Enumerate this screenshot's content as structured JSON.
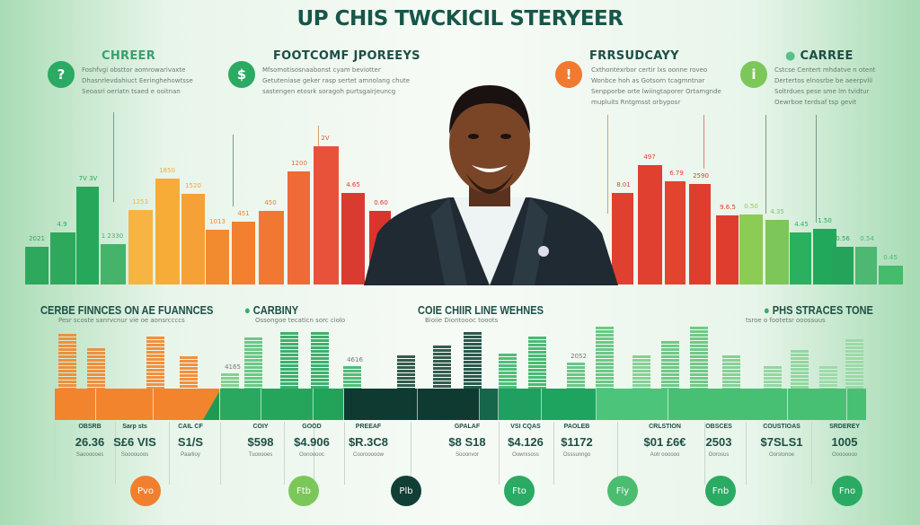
{
  "title": "UP CHIS TWCKICIL STERYEER",
  "sections": [
    {
      "heading": "CHREER",
      "icon": "question-icon",
      "glyph": "?",
      "color": "#2aaa62",
      "text": [
        "Foshfvgi obsttor aomrowarivaxte",
        "Dhasnrlevdahiuct Eeringhehowtsse",
        "Seoasri oeriatn tsaed e ooitnan"
      ]
    },
    {
      "heading": "FOOTCOMF JPOREEYS",
      "icon": "dollar-icon",
      "glyph": "$",
      "color": "#2aaa62",
      "text": [
        "Mfsomotisosnaabonst cyam beviotter",
        "Getuteniase geker rasp sertet amnolang chute",
        "sastengen etosrk soragoh purtsgairjeuncg"
      ]
    },
    {
      "heading": "FRRSUDCAYY",
      "icon": "lightbulb-icon",
      "glyph": "!",
      "color": "#f07a30",
      "text": [
        "Cxthontexrbor certir lxs oonne roveo",
        "Wonbce hoh as Gotsorn tcagmntnar",
        "Senpporbe orte lwiingtaporer Ortamgnde",
        "mupluits Rntgmsst orbyposr"
      ]
    },
    {
      "heading": "CARREE",
      "icon": "info-icon",
      "glyph": "i",
      "color": "#7cc75a",
      "text": [
        "Cstcse Centert mhdatve n otent",
        "Dertertos elnosrbe be aeerpvlil",
        "Soltrdues pese sme lm tvidtur",
        "Oewrboe terdsaf tsp gevit"
      ]
    }
  ],
  "top_bars_left": [
    {
      "label": "2021",
      "level": 26,
      "color": "#2ea85c"
    },
    {
      "label": "4.9",
      "level": 36,
      "color": "#2ea85c"
    },
    {
      "label": "7V 3V",
      "level": 68,
      "color": "#26a85a"
    },
    {
      "label": "1 2330",
      "level": 28,
      "color": "#45b36a"
    },
    {
      "label": "1253",
      "level": 52,
      "color": "#f6b443"
    },
    {
      "label": "1850",
      "level": 74,
      "color": "#f7ac38"
    },
    {
      "label": "1520",
      "level": 63,
      "color": "#f6a038"
    },
    {
      "label": "1013",
      "level": 38,
      "color": "#f28a30"
    },
    {
      "label": "451",
      "level": 44,
      "color": "#f2802f"
    },
    {
      "label": "450",
      "level": 51,
      "color": "#f07833"
    },
    {
      "label": "1200",
      "level": 79,
      "color": "#ee6a36"
    },
    {
      "label": "2V",
      "level": 96,
      "color": "#e8523a"
    },
    {
      "label": "4.65",
      "level": 64,
      "color": "#d93b30"
    },
    {
      "label": "0.60",
      "level": 51,
      "color": "#d9352d"
    }
  ],
  "top_bars_right": [
    {
      "label": "8.01",
      "level": 64,
      "color": "#e0402f"
    },
    {
      "label": "497",
      "level": 83,
      "color": "#e0402f"
    },
    {
      "label": "6.79",
      "level": 72,
      "color": "#e24430"
    },
    {
      "label": "2590",
      "level": 70,
      "color": "#df3e2e"
    },
    {
      "label": "9.6.5",
      "level": 48,
      "color": "#df3e2e"
    },
    {
      "label": "0.50",
      "level": 49,
      "color": "#8ccc55"
    },
    {
      "label": "4.35",
      "level": 45,
      "color": "#7cc65a"
    },
    {
      "label": "4.45",
      "level": 36,
      "color": "#2bb060"
    },
    {
      "label": "1.50",
      "level": 39,
      "color": "#22a85a"
    },
    {
      "label": "0.56",
      "level": 26,
      "color": "#25a35a"
    },
    {
      "label": "0.54",
      "level": 26,
      "color": "#4cb872"
    },
    {
      "label": "0.45",
      "level": 13,
      "color": "#45bb6c"
    }
  ],
  "bottom_headings": [
    {
      "title": "CERBE FINNCES ON AE FUANNCES",
      "sub": "Pesr scoste sanrvcnur vie oe aonsrccccs",
      "dot": false
    },
    {
      "title": "CARBINY",
      "sub": "Ossongoe tecaticn sorc ciolo",
      "dot": true
    },
    {
      "title": "COIE CHIIR LINE WEHNES",
      "sub": "Bioiie Diontoooc tooots",
      "dot": false
    },
    {
      "title": "PHS STRACES TONE",
      "sub": "tsroe o footetsr ooossuus",
      "dot": true
    }
  ],
  "small_bars": [
    {
      "label": "",
      "level": 87,
      "color": "#f2862e"
    },
    {
      "label": "",
      "level": 64,
      "color": "#f2862e"
    },
    {
      "label": "",
      "level": 83,
      "color": "#f2862e"
    },
    {
      "label": "",
      "level": 51,
      "color": "#f2862e"
    },
    {
      "label": "4165",
      "level": 24,
      "color": "#7acb86"
    },
    {
      "label": "",
      "level": 81,
      "color": "#5cc47a"
    },
    {
      "label": "",
      "level": 90,
      "color": "#2aa860"
    },
    {
      "label": "",
      "level": 90,
      "color": "#2aa860"
    },
    {
      "label": "4616",
      "level": 36,
      "color": "#3fb66c"
    },
    {
      "label": "",
      "level": 53,
      "color": "#1d4a3c"
    },
    {
      "label": "",
      "level": 69,
      "color": "#1d4a3c"
    },
    {
      "label": "",
      "level": 90,
      "color": "#13473a"
    },
    {
      "label": "",
      "level": 56,
      "color": "#3eb66a"
    },
    {
      "label": "",
      "level": 83,
      "color": "#36b466"
    },
    {
      "label": "2052",
      "level": 41,
      "color": "#5cc07a"
    },
    {
      "label": "",
      "level": 99,
      "color": "#5cc47a"
    },
    {
      "label": "",
      "level": 53,
      "color": "#7acd8c"
    },
    {
      "label": "",
      "level": 76,
      "color": "#62c47c"
    },
    {
      "label": "",
      "level": 99,
      "color": "#62c47c"
    },
    {
      "label": "",
      "level": 53,
      "color": "#7acd8c"
    },
    {
      "label": "",
      "level": 36,
      "color": "#8cd49a"
    },
    {
      "label": "",
      "level": 61,
      "color": "#8cd49a"
    },
    {
      "label": "",
      "level": 36,
      "color": "#98d8a4"
    },
    {
      "label": "",
      "level": 79,
      "color": "#98d8a4"
    }
  ],
  "stats": [
    {
      "key": "OBSRB",
      "value": "26.36",
      "caption": "Saoooooes"
    },
    {
      "key": "Sarp sts",
      "value": "S£6 VIS",
      "caption": "Soooouoos"
    },
    {
      "key": "CAIL CF",
      "value": "S1/S",
      "caption": "Paarlioy"
    },
    {
      "key": "COIY",
      "value": "$598",
      "caption": "Tuooooes"
    },
    {
      "key": "GOOD",
      "value": "$4.906",
      "caption": "Oonooooc"
    },
    {
      "key": "PREEAF",
      "value": "$R.3C8",
      "caption": "Coorooooow"
    },
    {
      "key": "GPALAF",
      "value": "$8 S18",
      "caption": "Sooonvor"
    },
    {
      "key": "VSI CQAS",
      "value": "$4.126",
      "caption": "Oowrxsoss"
    },
    {
      "key": "PAOLEB",
      "value": "$1172",
      "caption": "Osssunngo"
    },
    {
      "key": "CRLSTION",
      "value": "$01 £6€",
      "caption": "Aotr oooooo"
    },
    {
      "key": "OBSCES",
      "value": "2503",
      "caption": "Oorosus"
    },
    {
      "key": "COUSTIOAS",
      "value": "$7SLS1",
      "caption": "Oorstonoe"
    },
    {
      "key": "SRDEREY",
      "value": "1005",
      "caption": "Oooooooo"
    }
  ],
  "circles": [
    {
      "label": "Pvo",
      "color": "#f0802e"
    },
    {
      "label": "Ftb",
      "color": "#7cc75a"
    },
    {
      "label": "Plb",
      "color": "#123f35"
    },
    {
      "label": "Fto",
      "color": "#2aaa62"
    },
    {
      "label": "Fly",
      "color": "#4cbd70"
    },
    {
      "label": "Fnb",
      "color": "#2aaa62"
    },
    {
      "label": "Fno",
      "color": "#2aaa62"
    }
  ]
}
